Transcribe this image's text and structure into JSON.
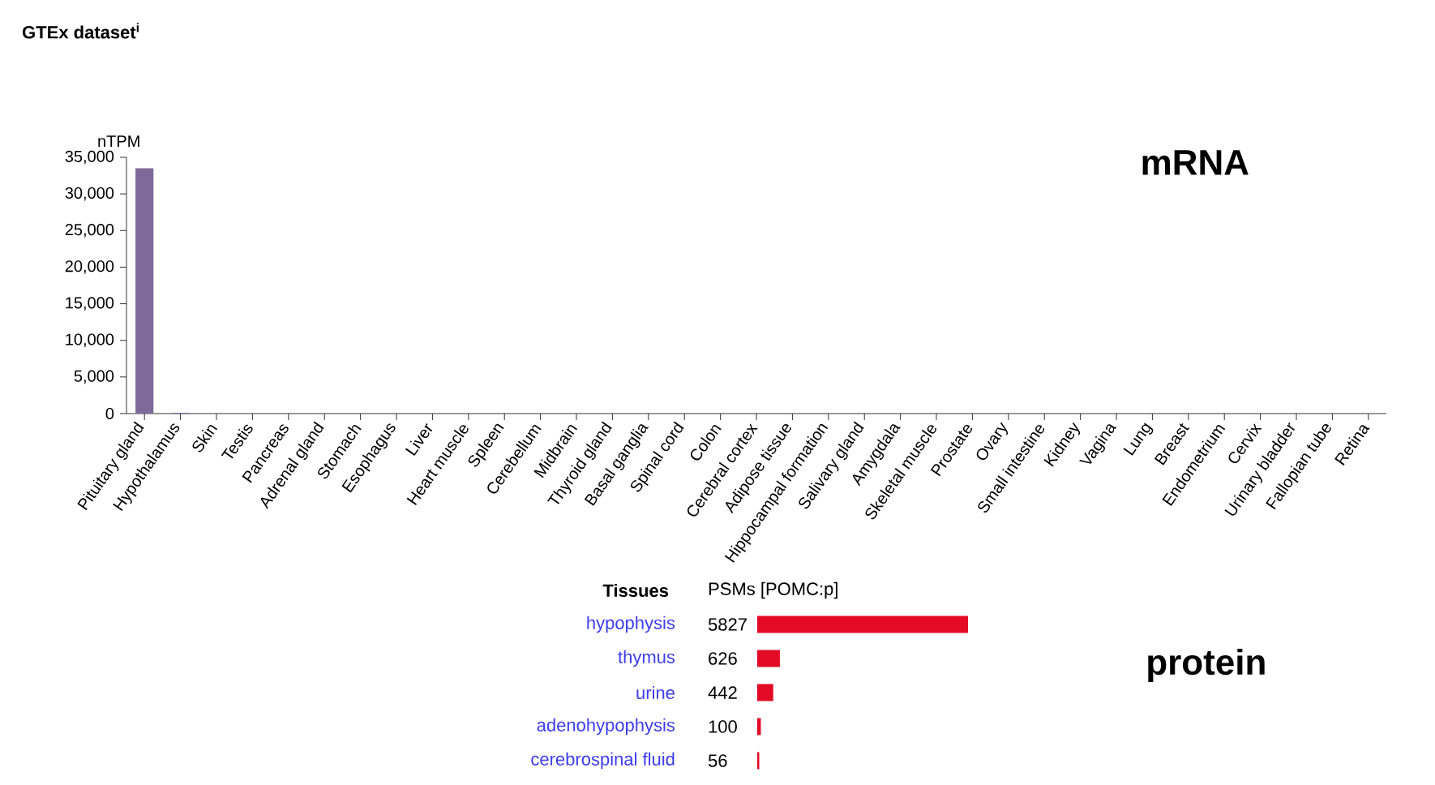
{
  "chart_data": [
    {
      "type": "bar",
      "title": "GTEx dataset$^{i}$",
      "ylabel": "nTPM",
      "annotations": [
        "mRNA"
      ],
      "categories": [
        "Pituitary gland",
        "Hypothalamus",
        "Skin",
        "Testis",
        "Pancreas",
        "Adrenal gland",
        "Stomach",
        "Esophagus",
        "Liver",
        "Heart muscle",
        "Spleen",
        "Cerebellum",
        "Midbrain",
        "Thyroid gland",
        "Basal ganglia",
        "Spinal cord",
        "Colon",
        "Cerebral cortex",
        "Adipose tissue",
        "Hippocampal formation",
        "Salivary gland",
        "Amygdala",
        "Skeletal muscle",
        "Prostate",
        "Ovary",
        "Small intestine",
        "Kidney",
        "Vagina",
        "Lung",
        "Breast",
        "Endometrium",
        "Cervix",
        "Urinary bladder",
        "Fallopian tube",
        "Retina"
      ],
      "values": [
        33500,
        100,
        0,
        0,
        0,
        0,
        0,
        0,
        0,
        0,
        0,
        0,
        0,
        0,
        0,
        0,
        0,
        0,
        0,
        0,
        0,
        0,
        0,
        0,
        0,
        0,
        0,
        0,
        0,
        0,
        0,
        0,
        0,
        0,
        0
      ],
      "color": "#7e6a9a",
      "ylim": [
        0,
        35000
      ],
      "yticks": [
        {
          "value": 0,
          "label": "0"
        },
        {
          "value": 5000,
          "label": "5,000"
        },
        {
          "value": 10000,
          "label": "10,000"
        },
        {
          "value": 15000,
          "label": "15,000"
        },
        {
          "value": 20000,
          "label": "20,000"
        },
        {
          "value": 25000,
          "label": "25,000"
        },
        {
          "value": 30000,
          "label": "30,000"
        },
        {
          "value": 35000,
          "label": "35,000"
        }
      ]
    },
    {
      "type": "bar",
      "orientation": "horizontal",
      "ylabel": "Tissues",
      "xlabel": "PSMs [POMC:p]",
      "annotations": [
        "protein"
      ],
      "categories": [
        "hypophysis",
        "thymus",
        "urine",
        "adenohypophysis",
        "cerebrospinal fluid"
      ],
      "values": [
        5827,
        626,
        442,
        100,
        56
      ],
      "color": "#e30a26",
      "data_labels": true,
      "tick_labels": "y"
    }
  ]
}
